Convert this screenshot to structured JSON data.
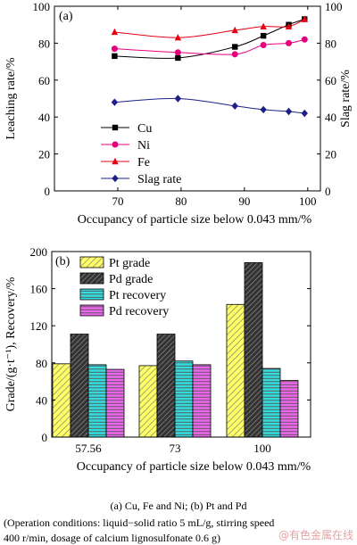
{
  "chart_data": [
    {
      "type": "line",
      "panel_label": "(a)",
      "xlabel": "Occupancy of particle size below 0.043 mm/%",
      "ylabel": "Leaching rate/%",
      "ylabel_right": "Slag rate/%",
      "x_ticks": [
        "70",
        "80",
        "90",
        "100"
      ],
      "y_ticks": [
        "0",
        "20",
        "40",
        "60",
        "80",
        "100"
      ],
      "y_ticks_right": [
        "0",
        "20",
        "40",
        "60",
        "80",
        "100"
      ],
      "xlim": [
        60,
        102
      ],
      "ylim": [
        0,
        100
      ],
      "ylim_right": [
        0,
        100
      ],
      "legend_position": "center-right",
      "series": [
        {
          "name": "Cu",
          "axis": "left",
          "color": "#000000",
          "marker": "square",
          "x": [
            69.5,
            79.5,
            88.5,
            93,
            97,
            99.5
          ],
          "y": [
            73,
            72,
            78,
            84,
            90,
            93
          ]
        },
        {
          "name": "Ni",
          "axis": "left",
          "color": "#e6007e",
          "marker": "circle",
          "x": [
            69.5,
            79.5,
            88.5,
            93,
            97,
            99.5
          ],
          "y": [
            77,
            75,
            74,
            79,
            80,
            82
          ]
        },
        {
          "name": "Fe",
          "axis": "left",
          "color": "#e60012",
          "marker": "triangle",
          "x": [
            69.5,
            79.5,
            88.5,
            93,
            97,
            99.5
          ],
          "y": [
            86,
            83,
            87,
            89,
            89,
            93
          ]
        },
        {
          "name": "Slag rate",
          "axis": "right",
          "color": "#1d2088",
          "marker": "diamond",
          "x": [
            69.5,
            79.5,
            88.5,
            93,
            97,
            99.5
          ],
          "y": [
            48,
            50,
            46,
            44,
            43,
            42
          ]
        }
      ]
    },
    {
      "type": "bar",
      "panel_label": "(b)",
      "xlabel": "Occupancy of particle size below 0.043 mm/%",
      "ylabel": "Grade/(g·t⁻¹), Recovery/%",
      "categories": [
        "57.56",
        "73",
        "100"
      ],
      "y_ticks": [
        "0",
        "40",
        "80",
        "120",
        "160",
        "200"
      ],
      "ylim": [
        0,
        200
      ],
      "legend_position": "top-left",
      "series": [
        {
          "name": "Pt grade",
          "color": "#ffff66",
          "pattern": "diagonal",
          "values": [
            79,
            77,
            143
          ]
        },
        {
          "name": "Pd grade",
          "color": "#555555",
          "pattern": "diagonal-dark",
          "values": [
            111,
            111,
            188
          ]
        },
        {
          "name": "Pt recovery",
          "color": "#33dddd",
          "pattern": "horizontal",
          "values": [
            78,
            82,
            74
          ]
        },
        {
          "name": "Pd recovery",
          "color": "#ee66ee",
          "pattern": "horizontal",
          "values": [
            73,
            78,
            61
          ]
        }
      ]
    }
  ],
  "caption": {
    "main": "(a) Cu, Fe and Ni; (b) Pt and Pd",
    "line1": "(Operation conditions: liquid−solid ratio 5 mL/g, stirring speed",
    "line2": "400 r/min, dosage of calcium lignosulfonate 0.6 g)"
  },
  "watermark": "@有色金属在线"
}
